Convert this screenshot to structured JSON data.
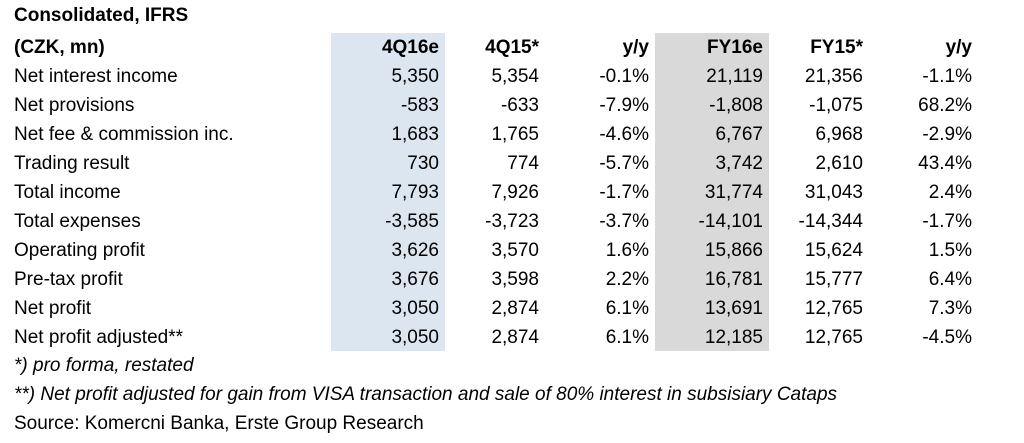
{
  "table": {
    "title": "Consolidated, IFRS",
    "unit_label": "(CZK, mn)",
    "columns": [
      "4Q16e",
      "4Q15*",
      "y/y",
      "FY16e",
      "FY15*",
      "y/y"
    ],
    "rows": [
      {
        "label": "Net interest income",
        "values": [
          "5,350",
          "5,354",
          "-0.1%",
          "21,119",
          "21,356",
          "-1.1%"
        ]
      },
      {
        "label": "Net provisions",
        "values": [
          "-583",
          "-633",
          "-7.9%",
          "-1,808",
          "-1,075",
          "68.2%"
        ]
      },
      {
        "label": "Net fee & commission inc.",
        "values": [
          "1,683",
          "1,765",
          "-4.6%",
          "6,767",
          "6,968",
          "-2.9%"
        ]
      },
      {
        "label": "Trading result",
        "values": [
          "730",
          "774",
          "-5.7%",
          "3,742",
          "2,610",
          "43.4%"
        ]
      },
      {
        "label": "Total income",
        "values": [
          "7,793",
          "7,926",
          "-1.7%",
          "31,774",
          "31,043",
          "2.4%"
        ]
      },
      {
        "label": "Total expenses",
        "values": [
          "-3,585",
          "-3,723",
          "-3.7%",
          "-14,101",
          "-14,344",
          "-1.7%"
        ]
      },
      {
        "label": "Operating profit",
        "values": [
          "3,626",
          "3,570",
          "1.6%",
          "15,866",
          "15,624",
          "1.5%"
        ]
      },
      {
        "label": "Pre-tax profit",
        "values": [
          "3,676",
          "3,598",
          "2.2%",
          "16,781",
          "15,777",
          "6.4%"
        ]
      },
      {
        "label": "Net profit",
        "values": [
          "3,050",
          "2,874",
          "6.1%",
          "13,691",
          "12,765",
          "7.3%"
        ]
      },
      {
        "label": "Net profit adjusted**",
        "values": [
          "3,050",
          "2,874",
          "6.1%",
          "12,185",
          "12,765",
          "-4.5%"
        ]
      }
    ]
  },
  "notes": {
    "note1": "*) pro forma, restated",
    "note2": "**) Net profit adjusted for gain from VISA transaction and sale of 80% interest in subsisiary Cataps",
    "source": "Source: Komercni Banka, Erste Group Research"
  },
  "colors": {
    "quarter_shade": "#dce6f1",
    "fy_shade": "#d9d9d9"
  }
}
